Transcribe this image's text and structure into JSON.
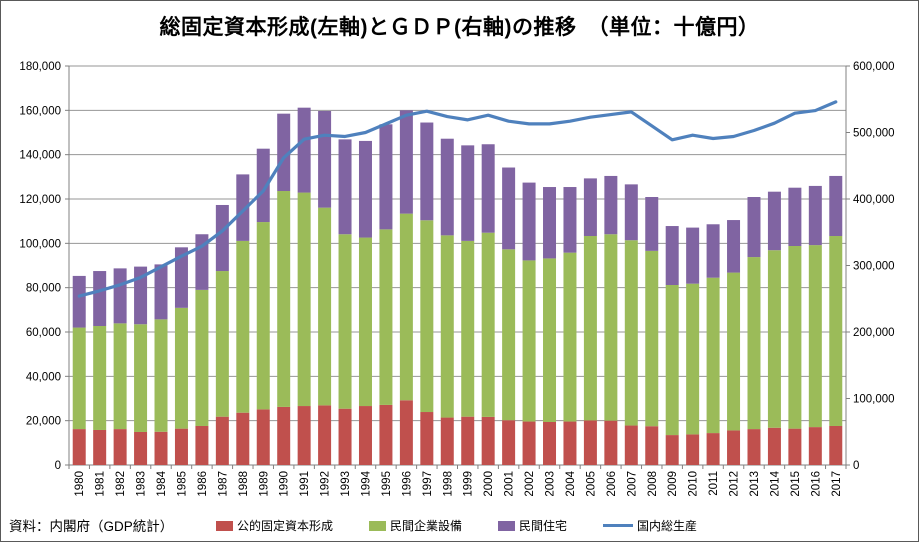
{
  "chart_data": {
    "type": "bar",
    "subtype": "stacked-bars-with-line",
    "title": "総固定資本形成(左軸)とＧＤＰ(右軸)の推移　（単位：十億円）",
    "source_note": "資料：内閣府（GDP統計）",
    "categories": [
      "1980",
      "1981",
      "1982",
      "1983",
      "1984",
      "1985",
      "1986",
      "1987",
      "1988",
      "1989",
      "1990",
      "1991",
      "1992",
      "1993",
      "1994",
      "1995",
      "1996",
      "1997",
      "1998",
      "1999",
      "2000",
      "2001",
      "2002",
      "2003",
      "2004",
      "2005",
      "2006",
      "2007",
      "2008",
      "2009",
      "2010",
      "2011",
      "2012",
      "2013",
      "2014",
      "2015",
      "2016",
      "2017"
    ],
    "series": [
      {
        "name": "公的固定資本形成",
        "type": "bar",
        "axis": "left",
        "color": "#C0504D",
        "values": [
          16200,
          15800,
          16200,
          14900,
          15000,
          16400,
          17600,
          21800,
          23600,
          25100,
          26200,
          26600,
          26900,
          25400,
          26600,
          27100,
          29200,
          23900,
          21400,
          21800,
          21700,
          20200,
          19600,
          19400,
          19600,
          20100,
          20000,
          17800,
          17500,
          13500,
          13800,
          14400,
          15600,
          16200,
          16800,
          16400,
          17100,
          17600
        ]
      },
      {
        "name": "民間企業設備",
        "type": "bar",
        "axis": "left",
        "color": "#9BBB59",
        "values": [
          45800,
          46900,
          47700,
          48600,
          50700,
          54500,
          61400,
          65700,
          77500,
          84500,
          97400,
          96300,
          89200,
          78700,
          76000,
          79200,
          84200,
          86500,
          82200,
          79300,
          83100,
          77100,
          72700,
          73800,
          76200,
          83200,
          84100,
          83600,
          79100,
          67700,
          68000,
          70100,
          71200,
          77600,
          80100,
          82400,
          82100,
          85700
        ]
      },
      {
        "name": "民間住宅",
        "type": "bar",
        "axis": "left",
        "color": "#8064A2",
        "values": [
          23300,
          24800,
          24800,
          26000,
          24800,
          27300,
          25100,
          29800,
          30000,
          33100,
          34900,
          38300,
          43600,
          42800,
          43600,
          47400,
          46600,
          44100,
          43600,
          43100,
          39900,
          36900,
          35100,
          32200,
          29600,
          26000,
          26300,
          25200,
          24300,
          26600,
          25300,
          24100,
          23700,
          27100,
          26400,
          26300,
          26700,
          27100
        ]
      },
      {
        "name": "国内総生産",
        "type": "line",
        "axis": "right",
        "color": "#4F81BD",
        "values": [
          254000,
          262000,
          271000,
          282000,
          298000,
          314000,
          329000,
          352000,
          382000,
          412000,
          462000,
          490000,
          496000,
          494000,
          500000,
          513000,
          526000,
          532000,
          524000,
          519000,
          526000,
          517000,
          513000,
          513000,
          517000,
          523000,
          527000,
          531000,
          510000,
          489000,
          496000,
          491000,
          494000,
          503000,
          514000,
          529000,
          533000,
          546000
        ]
      }
    ],
    "left_axis": {
      "min": 0,
      "max": 180000,
      "step": 20000,
      "tick_labels": [
        "0",
        "20,000",
        "40,000",
        "60,000",
        "80,000",
        "100,000",
        "120,000",
        "140,000",
        "160,000",
        "180,000"
      ]
    },
    "right_axis": {
      "min": 0,
      "max": 600000,
      "step": 100000,
      "tick_labels": [
        "0",
        "100,000",
        "200,000",
        "300,000",
        "400,000",
        "500,000",
        "600,000"
      ]
    },
    "grid": "horizontal",
    "legend_position": "bottom"
  },
  "colors": {
    "bar_public": "#C0504D",
    "bar_equipment": "#9BBB59",
    "bar_housing": "#8064A2",
    "gdp_line": "#4F81BD",
    "gridline": "#969696",
    "axis": "#808080",
    "text": "#000000"
  }
}
